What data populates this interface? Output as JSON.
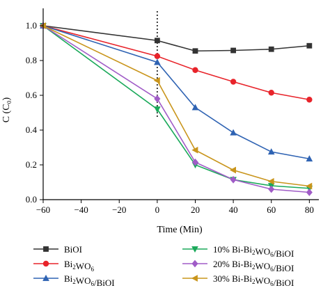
{
  "chart_data": {
    "type": "line",
    "xlabel": "Time (Min)",
    "ylabel": "C (C₀)",
    "xlim": [
      -60,
      85
    ],
    "ylim": [
      0.0,
      1.1
    ],
    "xticks": [
      -60,
      -40,
      -20,
      0,
      20,
      40,
      60,
      80
    ],
    "xtick_labels": [
      "−60",
      "−40",
      "−20",
      "0",
      "20",
      "40",
      "60",
      "80"
    ],
    "yticks": [
      0.0,
      0.2,
      0.4,
      0.6,
      0.8,
      1.0
    ],
    "ytick_labels": [
      "0.0",
      "0.2",
      "0.4",
      "0.6",
      "0.8",
      "1.0"
    ],
    "vline_x": 0,
    "grid": false,
    "x": [
      -60,
      0,
      20,
      40,
      60,
      80
    ],
    "series": [
      {
        "name": "BiOI",
        "name_parts": [
          [
            "BiOI",
            false
          ]
        ],
        "color": "#333333",
        "marker": "square",
        "values": [
          1.0,
          0.915,
          0.855,
          0.858,
          0.865,
          0.885
        ]
      },
      {
        "name": "Bi2WO6",
        "name_parts": [
          [
            "Bi",
            false
          ],
          [
            "2",
            true
          ],
          [
            "WO",
            false
          ],
          [
            "6",
            true
          ]
        ],
        "color": "#e8232a",
        "marker": "circle",
        "values": [
          1.0,
          0.825,
          0.745,
          0.678,
          0.615,
          0.575
        ]
      },
      {
        "name": "Bi2WO6/BiOI",
        "name_parts": [
          [
            "Bi",
            false
          ],
          [
            "2",
            true
          ],
          [
            "WO",
            false
          ],
          [
            "6",
            true
          ],
          [
            "/BiOI",
            false
          ]
        ],
        "color": "#2f63b3",
        "marker": "triangle-up",
        "values": [
          1.0,
          0.79,
          0.53,
          0.385,
          0.275,
          0.235
        ]
      },
      {
        "name": "10% Bi-Bi2WO6/BiOI",
        "name_parts": [
          [
            "10% Bi-Bi",
            false
          ],
          [
            "2",
            true
          ],
          [
            "WO",
            false
          ],
          [
            "6",
            true
          ],
          [
            "/BiOI",
            false
          ]
        ],
        "color": "#1aa95a",
        "marker": "triangle-down",
        "values": [
          1.0,
          0.52,
          0.2,
          0.115,
          0.08,
          0.065
        ]
      },
      {
        "name": "20% Bi-Bi2WO6/BiOI",
        "name_parts": [
          [
            "20% Bi-Bi",
            false
          ],
          [
            "2",
            true
          ],
          [
            "WO",
            false
          ],
          [
            "6",
            true
          ],
          [
            "/BiOI",
            false
          ]
        ],
        "color": "#a05cc7",
        "marker": "diamond",
        "values": [
          1.0,
          0.58,
          0.215,
          0.115,
          0.06,
          0.042
        ]
      },
      {
        "name": "30% Bi-Bi2WO6/BiOI",
        "name_parts": [
          [
            "30% Bi-Bi",
            false
          ],
          [
            "2",
            true
          ],
          [
            "WO",
            false
          ],
          [
            "6",
            true
          ],
          [
            "/BiOI",
            false
          ]
        ],
        "color": "#c9951c",
        "marker": "triangle-left",
        "values": [
          1.0,
          0.685,
          0.285,
          0.17,
          0.105,
          0.078
        ]
      }
    ]
  }
}
